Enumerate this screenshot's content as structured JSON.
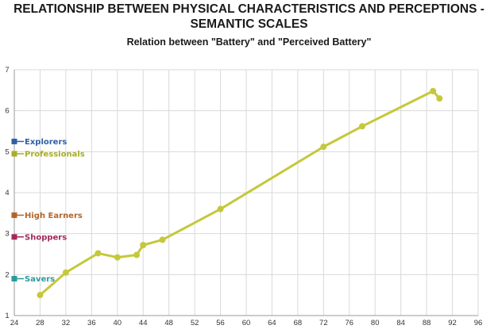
{
  "header": {
    "title_line1": "RELATIONSHIP BETWEEN PHYSICAL CHARACTERISTICS AND PERCEPTIONS -",
    "title_line2": "SEMANTIC SCALES",
    "subtitle": "Relation between \"Battery\" and \"Perceived Battery\""
  },
  "chart_data": {
    "type": "line",
    "title": "RELATIONSHIP BETWEEN PHYSICAL CHARACTERISTICS AND PERCEPTIONS - SEMANTIC SCALES",
    "subtitle": "Relation between \"Battery\" and \"Perceived Battery\"",
    "xlabel": "",
    "ylabel": "",
    "xlim": [
      24,
      96
    ],
    "ylim": [
      1,
      7
    ],
    "xticks": [
      24,
      28,
      32,
      36,
      40,
      44,
      48,
      52,
      56,
      60,
      64,
      68,
      72,
      76,
      80,
      84,
      88,
      92,
      96
    ],
    "yticks": [
      1,
      2,
      3,
      4,
      5,
      6,
      7
    ],
    "grid": true,
    "line_color": "#c5c83a",
    "series": [
      {
        "x": [
          28,
          32,
          37,
          40,
          43,
          44,
          47,
          56,
          72,
          78,
          89,
          90
        ],
        "y": [
          1.5,
          2.05,
          2.52,
          2.42,
          2.48,
          2.72,
          2.85,
          3.6,
          5.12,
          5.62,
          6.48,
          6.3
        ]
      }
    ],
    "segments": [
      {
        "label": "Explorers",
        "y": 5.25,
        "color": "#2e5fa6"
      },
      {
        "label": "Professionals",
        "y": 4.95,
        "color": "#a8ad27"
      },
      {
        "label": "High Earners",
        "y": 3.45,
        "color": "#b5652a"
      },
      {
        "label": "Shoppers",
        "y": 2.92,
        "color": "#a3285a"
      },
      {
        "label": "Savers",
        "y": 1.9,
        "color": "#2e9a9a"
      }
    ]
  }
}
